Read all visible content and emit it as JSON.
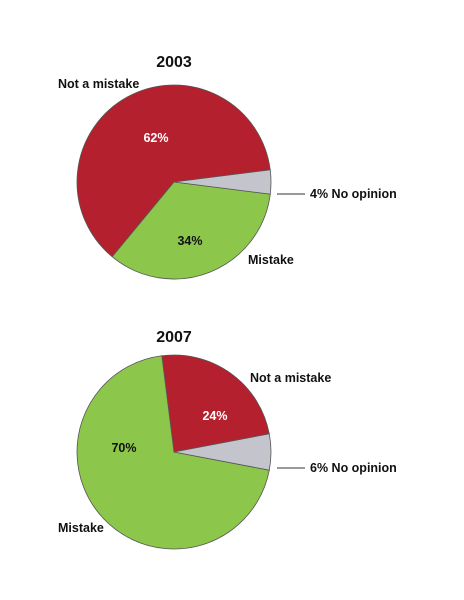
{
  "colors": {
    "not_a_mistake": "#b5202e",
    "mistake": "#8cc64a",
    "no_opinion": "#c4c4cc"
  },
  "chart_data": [
    {
      "type": "pie",
      "title": "2003",
      "slices": [
        {
          "label": "Not a mistake",
          "value": 62,
          "value_text": "62%",
          "color_key": "not_a_mistake"
        },
        {
          "label": "Mistake",
          "value": 34,
          "value_text": "34%",
          "color_key": "mistake"
        },
        {
          "label": "No opinion",
          "value": 4,
          "value_text": "4%",
          "color_key": "no_opinion"
        }
      ],
      "no_opinion_caption": "4% No opinion"
    },
    {
      "type": "pie",
      "title": "2007",
      "slices": [
        {
          "label": "Not a mistake",
          "value": 24,
          "value_text": "24%",
          "color_key": "not_a_mistake"
        },
        {
          "label": "Mistake",
          "value": 70,
          "value_text": "70%",
          "color_key": "mistake"
        },
        {
          "label": "No opinion",
          "value": 6,
          "value_text": "6%",
          "color_key": "no_opinion"
        }
      ],
      "no_opinion_caption": "6% No opinion"
    }
  ]
}
